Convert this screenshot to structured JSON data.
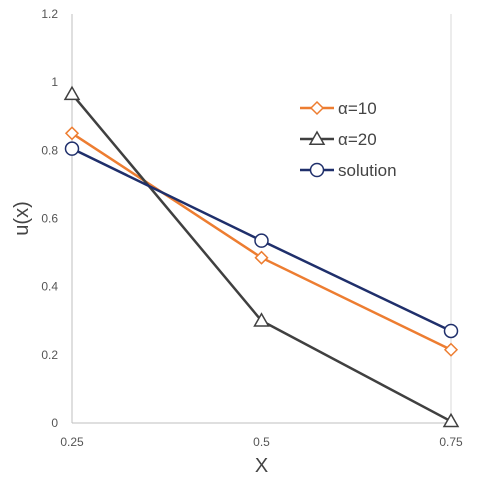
{
  "chart_data": {
    "type": "line",
    "xlabel": "X",
    "ylabel": "u(x)",
    "x": [
      0.25,
      0.5,
      0.75
    ],
    "x_tick_labels": [
      "0.25",
      "0.5",
      "0.75"
    ],
    "y_tick_labels": [
      "0",
      "0.2",
      "0.4",
      "0.6",
      "0.8",
      "1",
      "1.2"
    ],
    "ylim": [
      0,
      1.2
    ],
    "grid": false,
    "legend_position": "top-right",
    "series": [
      {
        "name": "α=10",
        "values": [
          0.85,
          0.485,
          0.215
        ],
        "color": "#ED7D31",
        "marker": "diamond"
      },
      {
        "name": "α=20",
        "values": [
          0.965,
          0.3,
          0.005
        ],
        "color": "#404040",
        "marker": "triangle"
      },
      {
        "name": "solution",
        "values": [
          0.805,
          0.535,
          0.27
        ],
        "color": "#1F2F6B",
        "marker": "circle"
      }
    ]
  }
}
